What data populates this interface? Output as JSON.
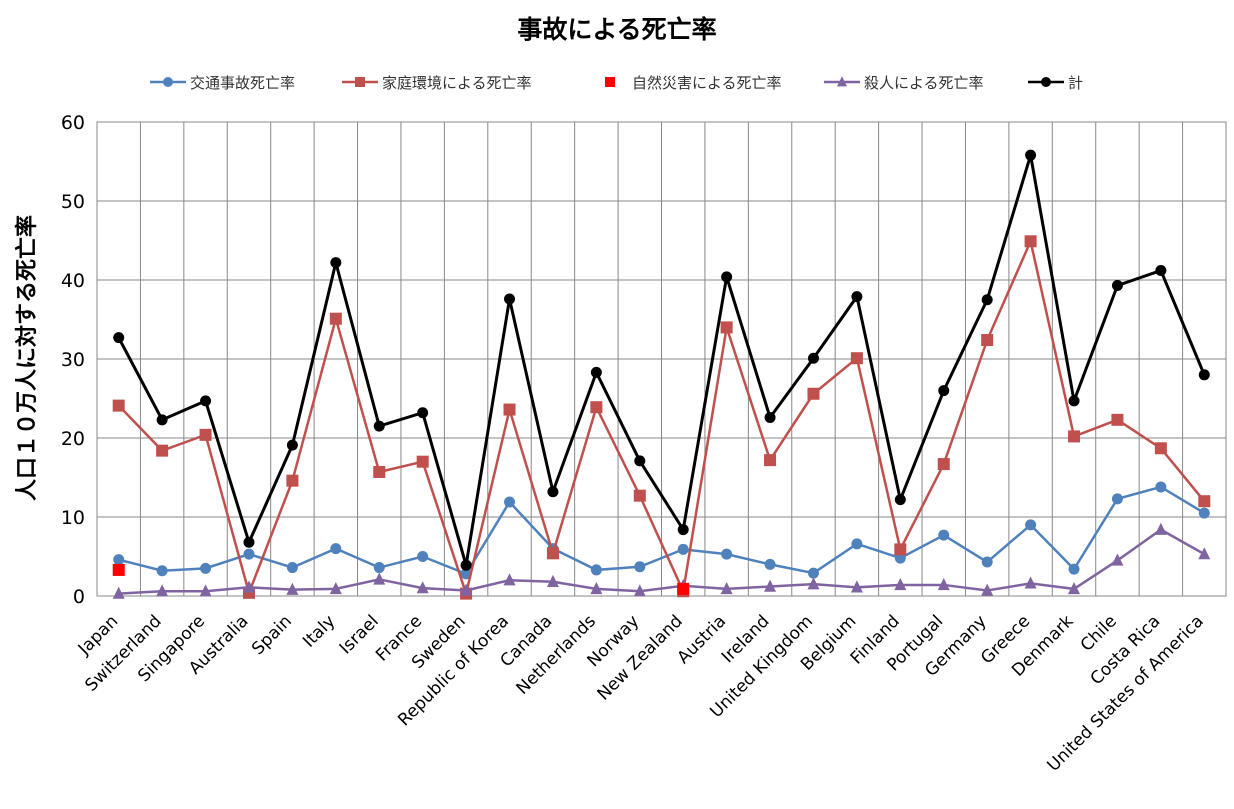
{
  "chart_data": {
    "type": "line",
    "title": "事故による死亡率",
    "xlabel": "",
    "ylabel": "人口１０万人に対する死亡率",
    "ylim": [
      0,
      60
    ],
    "yticks": [
      0,
      10,
      20,
      30,
      40,
      50,
      60
    ],
    "grid": true,
    "legend_position": "top",
    "categories": [
      "Japan",
      "Switzerland",
      "Singapore",
      "Australia",
      "Spain",
      "Italy",
      "Israel",
      "France",
      "Sweden",
      "Republic of Korea",
      "Canada",
      "Netherlands",
      "Norway",
      "New Zealand",
      "Austria",
      "Ireland",
      "United Kingdom",
      "Belgium",
      "Finland",
      "Portugal",
      "Germany",
      "Greece",
      "Denmark",
      "Chile",
      "Costa Rica",
      "United States of America"
    ],
    "series": [
      {
        "name": "交通事故死亡率",
        "color": "#4F81BD",
        "marker": "circle",
        "line": true,
        "values": [
          4.6,
          3.2,
          3.5,
          5.3,
          3.6,
          6.0,
          3.6,
          5.0,
          2.8,
          11.9,
          6.0,
          3.3,
          3.7,
          5.9,
          5.3,
          4.0,
          2.9,
          6.6,
          4.8,
          7.7,
          4.3,
          9.0,
          3.4,
          12.3,
          13.8,
          10.5
        ]
      },
      {
        "name": "家庭環境による死亡率",
        "color": "#C0504D",
        "marker": "square",
        "line": true,
        "values": [
          24.1,
          18.4,
          20.4,
          0.4,
          14.6,
          35.1,
          15.7,
          17.0,
          0.3,
          23.6,
          5.4,
          23.9,
          12.7,
          0.6,
          34.0,
          17.2,
          25.6,
          30.1,
          5.9,
          16.7,
          32.4,
          44.9,
          20.2,
          22.3,
          18.7,
          12.0
        ]
      },
      {
        "name": "自然災害による死亡率",
        "color": "#FF0000",
        "marker": "square",
        "line": false,
        "values": [
          3.3,
          null,
          null,
          null,
          null,
          null,
          null,
          null,
          null,
          null,
          null,
          null,
          null,
          0.9,
          null,
          null,
          null,
          null,
          null,
          null,
          null,
          null,
          null,
          null,
          null,
          null
        ]
      },
      {
        "name": "殺人による死亡率",
        "color": "#8064A2",
        "marker": "triangle",
        "line": true,
        "values": [
          0.3,
          0.6,
          0.6,
          1.1,
          0.8,
          0.9,
          2.1,
          1.0,
          0.7,
          2.0,
          1.8,
          0.9,
          0.6,
          1.3,
          0.9,
          1.2,
          1.5,
          1.1,
          1.4,
          1.4,
          0.7,
          1.6,
          0.9,
          4.5,
          8.4,
          5.3
        ]
      },
      {
        "name": "計",
        "color": "#000000",
        "marker": "circle",
        "line": true,
        "values": [
          32.7,
          22.3,
          24.7,
          6.8,
          19.1,
          42.2,
          21.5,
          23.2,
          3.9,
          37.6,
          13.2,
          28.3,
          17.1,
          8.4,
          40.4,
          22.6,
          30.1,
          37.9,
          12.2,
          26.0,
          37.5,
          55.8,
          24.7,
          39.3,
          41.2,
          28.0
        ]
      }
    ]
  }
}
